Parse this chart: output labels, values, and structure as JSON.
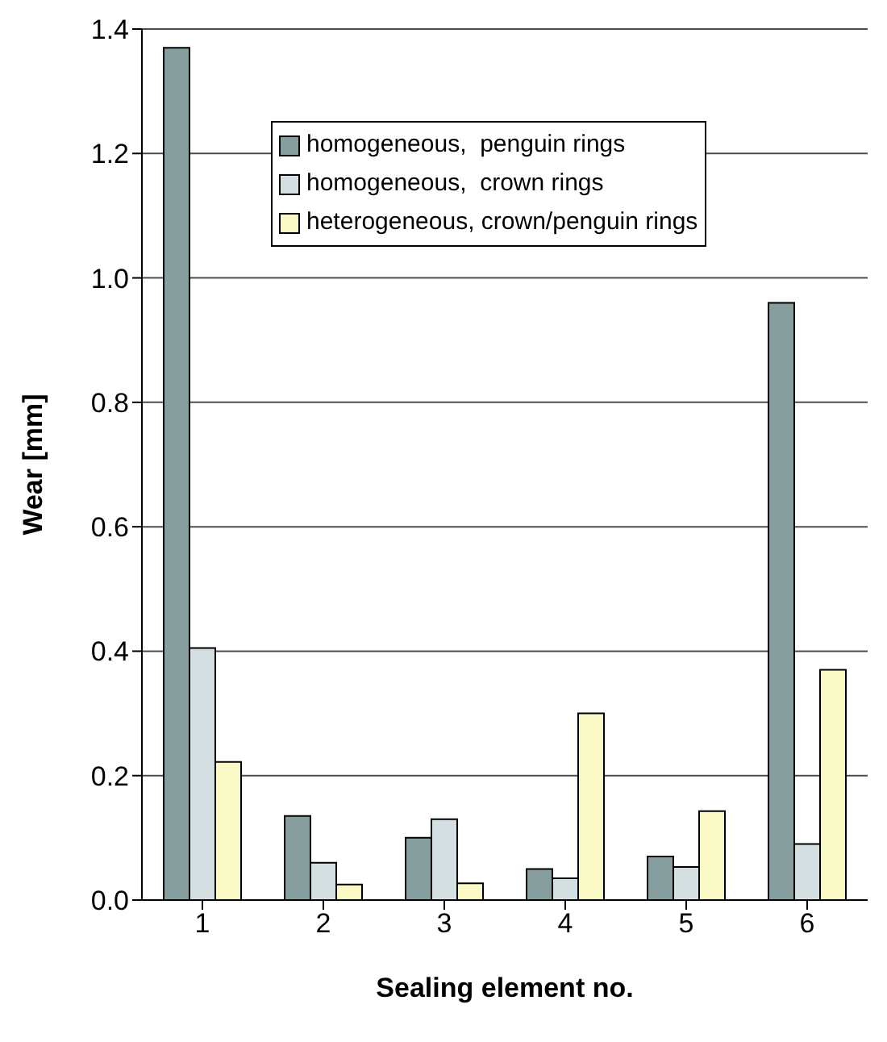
{
  "chart_data": {
    "type": "bar",
    "xlabel": "Sealing element no.",
    "ylabel": "Wear [mm]",
    "categories": [
      "1",
      "2",
      "3",
      "4",
      "5",
      "6"
    ],
    "series": [
      {
        "name": "homogeneous,  penguin rings",
        "color": "#869e9e",
        "values": [
          1.37,
          0.135,
          0.1,
          0.05,
          0.07,
          0.96
        ]
      },
      {
        "name": "homogeneous,  crown rings",
        "color": "#d3dfe0",
        "values": [
          0.405,
          0.06,
          0.13,
          0.035,
          0.053,
          0.09
        ]
      },
      {
        "name": "heterogeneous, crown/penguin rings",
        "color": "#fafac6",
        "values": [
          0.222,
          0.025,
          0.027,
          0.3,
          0.143,
          0.37
        ]
      }
    ],
    "ylim": [
      0,
      1.4
    ],
    "yticks": [
      {
        "value": 0,
        "label": "0.0"
      },
      0.2,
      0.4,
      0.6,
      0.8,
      {
        "value": 1,
        "label": "1.0"
      },
      1.2,
      1.4
    ],
    "grid": "y",
    "legend": "top"
  }
}
